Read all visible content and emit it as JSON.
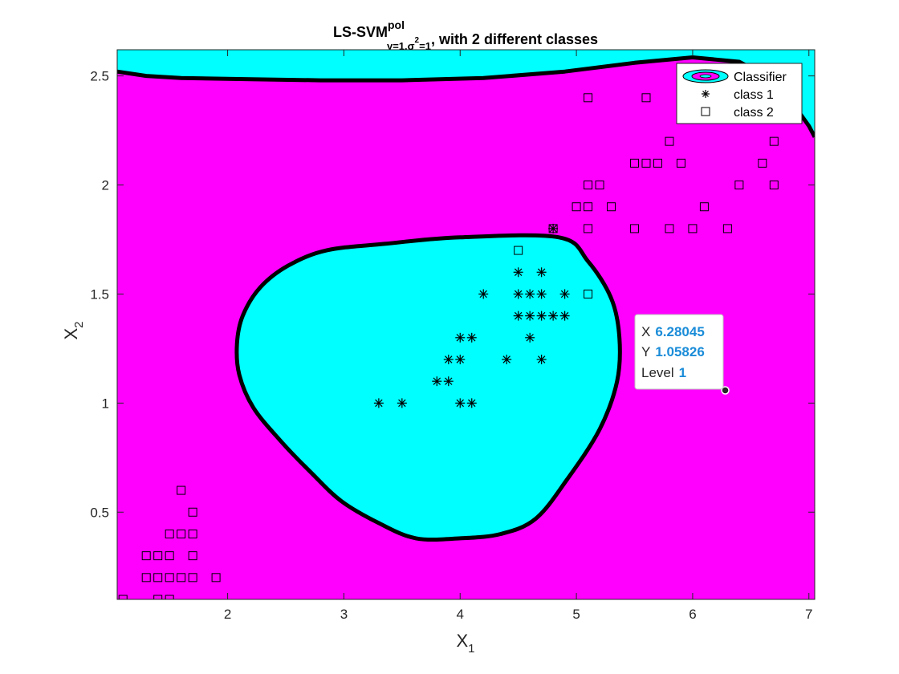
{
  "colors": {
    "region_class2": "#ff00ff",
    "region_class1": "#00ffff",
    "boundary": "#000000",
    "datatip_value": "#1a8cd8"
  },
  "chart_data": {
    "type": "scatter",
    "title": {
      "main": "LS-SVM",
      "superscript": "pol",
      "subscript_gamma": "γ=1,σ",
      "subscript_sq": "2",
      "subscript_eq": "=1",
      "suffix": ", with 2 different classes"
    },
    "xlabel": {
      "base": "X",
      "sub": "1"
    },
    "ylabel": {
      "base": "X",
      "sub": "2"
    },
    "xlim": [
      1.05,
      7.05
    ],
    "ylim": [
      0.1,
      2.62
    ],
    "xticks": [
      2,
      3,
      4,
      5,
      6,
      7
    ],
    "yticks": [
      0.5,
      1,
      1.5,
      2,
      2.5
    ],
    "legend": {
      "position": "top-right",
      "entries": [
        "Classifier",
        "class 1",
        "class 2"
      ]
    },
    "series": [
      {
        "name": "class 1",
        "marker": "asterisk",
        "points": [
          [
            3.3,
            1.0
          ],
          [
            3.5,
            1.0
          ],
          [
            4.0,
            1.0
          ],
          [
            4.1,
            1.0
          ],
          [
            3.8,
            1.1
          ],
          [
            3.9,
            1.1
          ],
          [
            3.9,
            1.2
          ],
          [
            4.0,
            1.2
          ],
          [
            4.4,
            1.2
          ],
          [
            4.7,
            1.2
          ],
          [
            4.0,
            1.3
          ],
          [
            4.1,
            1.3
          ],
          [
            4.6,
            1.3
          ],
          [
            4.5,
            1.4
          ],
          [
            4.6,
            1.4
          ],
          [
            4.7,
            1.4
          ],
          [
            4.8,
            1.4
          ],
          [
            4.9,
            1.4
          ],
          [
            4.2,
            1.5
          ],
          [
            4.5,
            1.5
          ],
          [
            4.6,
            1.5
          ],
          [
            4.7,
            1.5
          ],
          [
            4.9,
            1.5
          ],
          [
            4.5,
            1.6
          ],
          [
            4.7,
            1.6
          ],
          [
            4.8,
            1.8
          ]
        ]
      },
      {
        "name": "class 2",
        "marker": "square",
        "points": [
          [
            1.1,
            0.1
          ],
          [
            1.4,
            0.1
          ],
          [
            1.5,
            0.1
          ],
          [
            1.3,
            0.2
          ],
          [
            1.4,
            0.2
          ],
          [
            1.5,
            0.2
          ],
          [
            1.6,
            0.2
          ],
          [
            1.7,
            0.2
          ],
          [
            1.9,
            0.2
          ],
          [
            1.3,
            0.3
          ],
          [
            1.4,
            0.3
          ],
          [
            1.5,
            0.3
          ],
          [
            1.7,
            0.3
          ],
          [
            1.5,
            0.4
          ],
          [
            1.6,
            0.4
          ],
          [
            1.7,
            0.4
          ],
          [
            1.7,
            0.5
          ],
          [
            1.6,
            0.6
          ],
          [
            4.5,
            1.7
          ],
          [
            5.1,
            1.5
          ],
          [
            4.8,
            1.8
          ],
          [
            5.1,
            1.8
          ],
          [
            5.5,
            1.8
          ],
          [
            5.8,
            1.8
          ],
          [
            6.0,
            1.8
          ],
          [
            6.3,
            1.8
          ],
          [
            5.0,
            1.9
          ],
          [
            5.1,
            1.9
          ],
          [
            5.3,
            1.9
          ],
          [
            6.1,
            1.9
          ],
          [
            5.1,
            2.0
          ],
          [
            5.2,
            2.0
          ],
          [
            6.4,
            2.0
          ],
          [
            6.7,
            2.0
          ],
          [
            5.5,
            2.1
          ],
          [
            5.6,
            2.1
          ],
          [
            5.7,
            2.1
          ],
          [
            5.9,
            2.1
          ],
          [
            6.6,
            2.1
          ],
          [
            5.8,
            2.2
          ],
          [
            6.7,
            2.2
          ],
          [
            5.1,
            2.4
          ],
          [
            5.6,
            2.4
          ]
        ]
      }
    ],
    "decision_regions": {
      "class1_region": [
        [
          4.0,
          1.76
        ],
        [
          4.85,
          1.76
        ],
        [
          5.1,
          1.65
        ],
        [
          5.3,
          1.48
        ],
        [
          5.37,
          1.3
        ],
        [
          5.35,
          1.1
        ],
        [
          5.2,
          0.88
        ],
        [
          4.92,
          0.65
        ],
        [
          4.65,
          0.47
        ],
        [
          4.35,
          0.4
        ],
        [
          4.0,
          0.38
        ],
        [
          3.62,
          0.38
        ],
        [
          3.3,
          0.45
        ],
        [
          2.98,
          0.55
        ],
        [
          2.72,
          0.68
        ],
        [
          2.45,
          0.83
        ],
        [
          2.22,
          0.98
        ],
        [
          2.1,
          1.13
        ],
        [
          2.08,
          1.27
        ],
        [
          2.13,
          1.4
        ],
        [
          2.28,
          1.53
        ],
        [
          2.52,
          1.63
        ],
        [
          2.85,
          1.7
        ],
        [
          3.35,
          1.73
        ]
      ],
      "upper_boundary": [
        [
          1.05,
          2.52
        ],
        [
          1.3,
          2.5
        ],
        [
          1.6,
          2.49
        ],
        [
          2.2,
          2.485
        ],
        [
          2.8,
          2.48
        ],
        [
          3.5,
          2.48
        ],
        [
          4.2,
          2.49
        ],
        [
          4.9,
          2.52
        ],
        [
          5.5,
          2.56
        ],
        [
          6.0,
          2.585
        ],
        [
          6.4,
          2.565
        ],
        [
          6.7,
          2.48
        ],
        [
          6.88,
          2.36
        ],
        [
          7.0,
          2.27
        ],
        [
          7.05,
          2.22
        ]
      ]
    },
    "datatip": {
      "x_label": "X",
      "x_value": "6.28045",
      "y_label": "Y",
      "y_value": "1.05826",
      "level_label": "Level",
      "level_value": "1",
      "point": [
        6.28045,
        1.05826
      ]
    }
  }
}
